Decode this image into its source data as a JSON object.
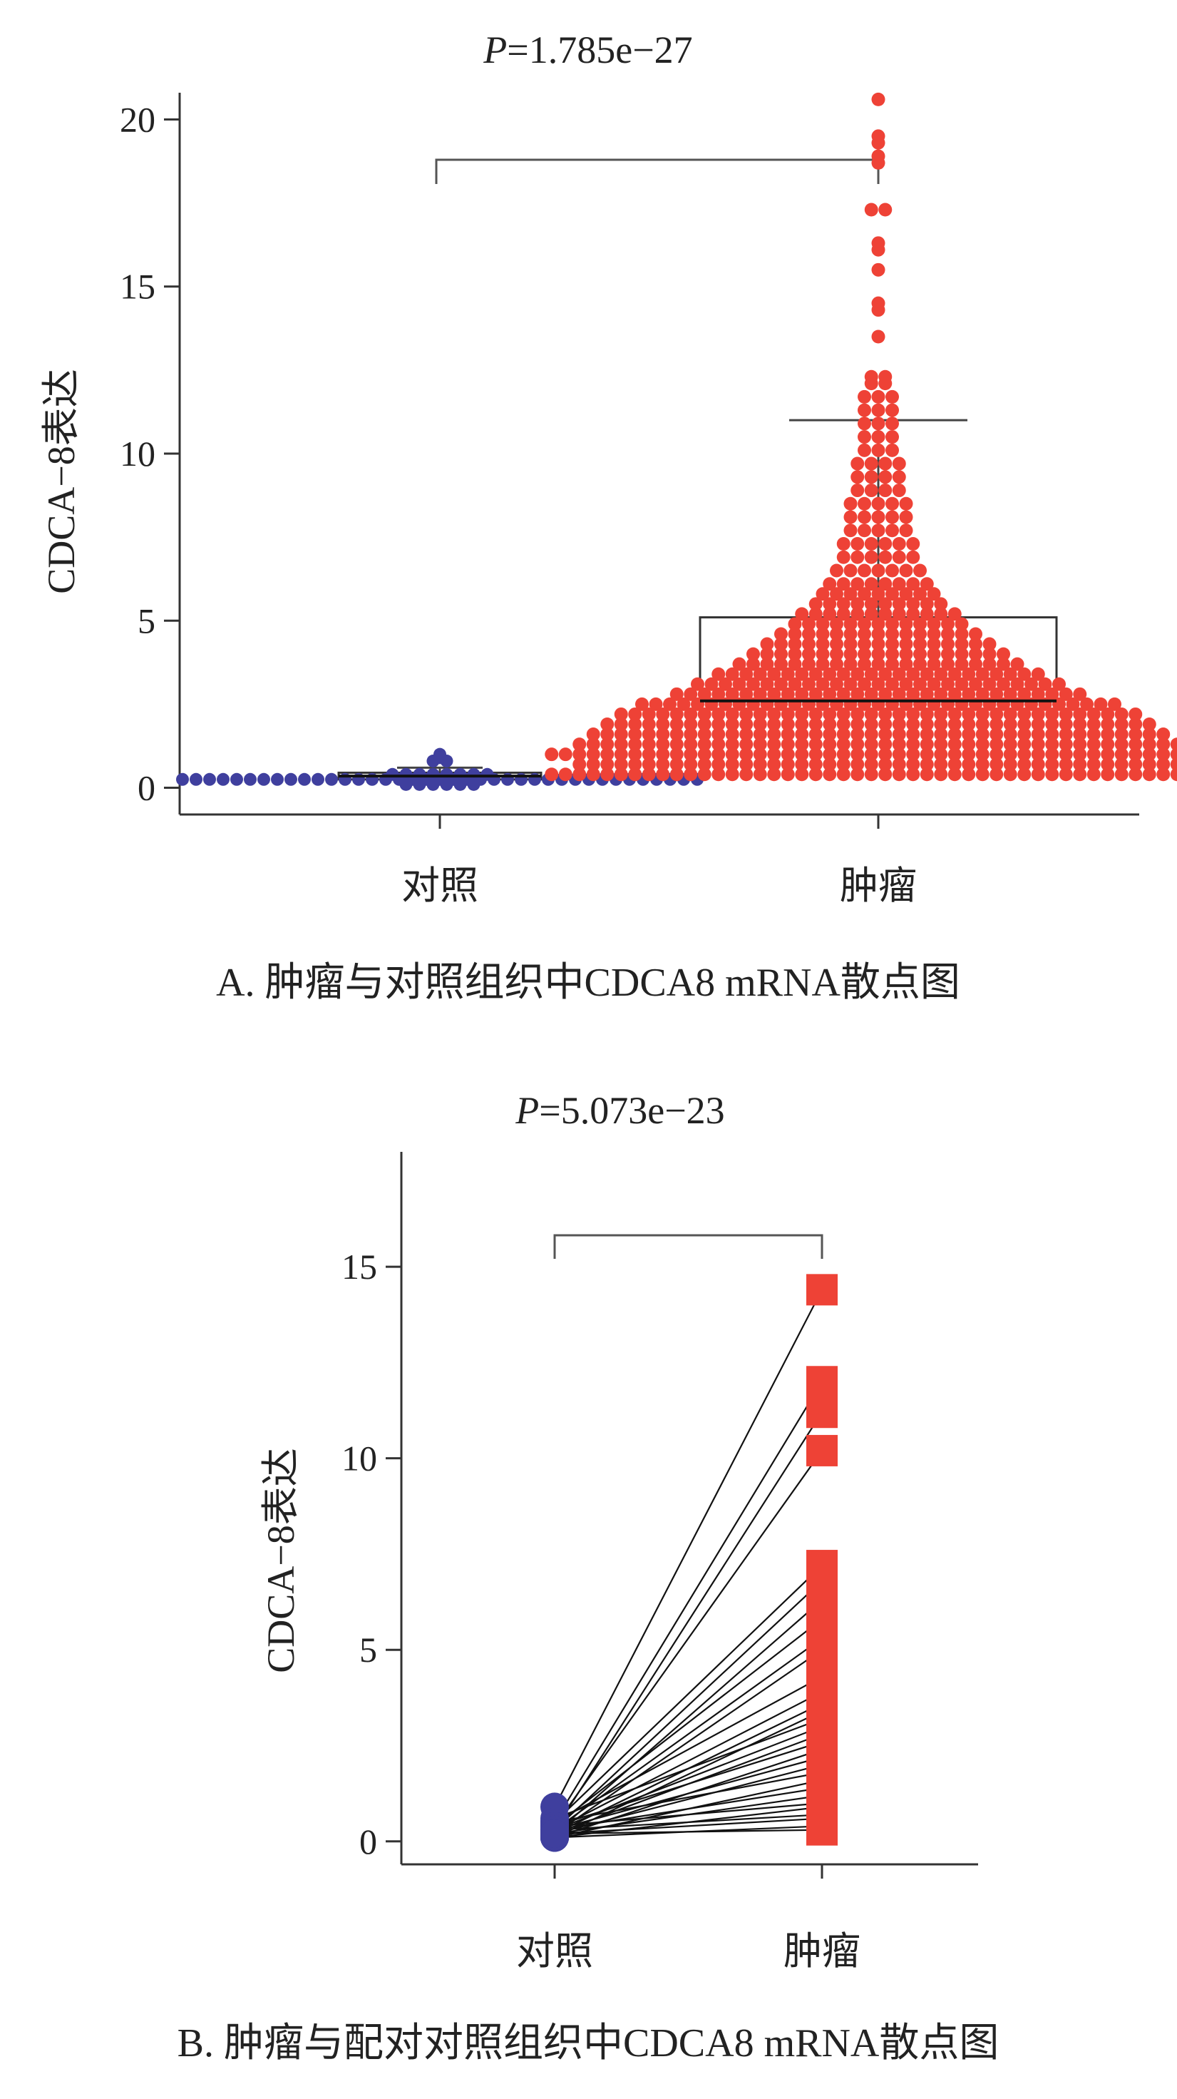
{
  "chart_data": [
    {
      "panel": "A",
      "type": "scatter",
      "title": {
        "italic": "P",
        "text": "=1.785e−27"
      },
      "ylabel": "CDCA−8表达",
      "xlabel": "",
      "categories": [
        "对照",
        "肿瘤"
      ],
      "ylim": [
        -0.8,
        20.8
      ],
      "yticks": [
        0,
        5,
        10,
        15,
        20
      ],
      "caption": "A. 肿瘤与对照组织中CDCA8 mRNA散点图",
      "colors": {
        "control": "#3f3f9e",
        "tumor": "#ee4236"
      },
      "box": {
        "control": {
          "q1": 0.25,
          "median": 0.35,
          "q3": 0.45,
          "whisker_high": 0.6
        },
        "tumor": {
          "q1": 2.6,
          "median": 2.6,
          "q3": 5.1,
          "whisker_high": 11.0
        }
      },
      "series": [
        {
          "name": "对照",
          "values": [
            0.25,
            0.25,
            0.25,
            0.25,
            0.25,
            0.25,
            0.25,
            0.25,
            0.25,
            0.25,
            0.25,
            0.25,
            0.25,
            0.25,
            0.25,
            0.25,
            0.25,
            0.25,
            0.25,
            0.25,
            0.25,
            0.25,
            0.25,
            0.25,
            0.25,
            0.25,
            0.25,
            0.25,
            0.25,
            0.25,
            0.25,
            0.25,
            0.25,
            0.25,
            0.25,
            0.25,
            0.25,
            0.25,
            0.25,
            0.4,
            0.4,
            0.4,
            0.4,
            0.4,
            0.4,
            0.4,
            0.4,
            0.1,
            0.1,
            0.1,
            0.1,
            0.1,
            0.1,
            0.8,
            0.8,
            0.9,
            1.0
          ]
        },
        {
          "name": "肿瘤",
          "values": [
            0.4,
            0.4,
            0.4,
            0.4,
            0.4,
            0.4,
            0.4,
            0.4,
            0.4,
            0.4,
            0.4,
            0.4,
            0.4,
            0.4,
            0.4,
            0.4,
            0.4,
            0.4,
            0.4,
            0.4,
            0.4,
            0.4,
            0.4,
            0.4,
            0.4,
            0.4,
            0.4,
            0.4,
            0.4,
            0.4,
            0.4,
            0.4,
            0.4,
            0.4,
            0.4,
            0.4,
            0.4,
            0.4,
            0.4,
            0.4,
            0.4,
            0.4,
            0.4,
            0.4,
            0.4,
            0.4,
            0.4,
            0.4,
            0.7,
            0.7,
            0.7,
            0.7,
            0.7,
            0.7,
            0.7,
            0.7,
            0.7,
            0.7,
            0.7,
            0.7,
            0.7,
            0.7,
            0.7,
            0.7,
            0.7,
            0.7,
            0.7,
            0.7,
            0.7,
            0.7,
            0.7,
            0.7,
            0.7,
            0.7,
            0.7,
            0.7,
            0.7,
            0.7,
            0.7,
            0.7,
            0.7,
            0.7,
            0.7,
            0.7,
            0.7,
            0.7,
            0.7,
            0.7,
            0.7,
            0.7,
            0.7,
            0.7,
            1.0,
            1.0,
            1.0,
            1.0,
            1.0,
            1.0,
            1.0,
            1.0,
            1.0,
            1.0,
            1.0,
            1.0,
            1.0,
            1.0,
            1.0,
            1.0,
            1.0,
            1.0,
            1.0,
            1.0,
            1.0,
            1.0,
            1.0,
            1.0,
            1.0,
            1.0,
            1.0,
            1.0,
            1.0,
            1.0,
            1.0,
            1.0,
            1.0,
            1.0,
            1.0,
            1.0,
            1.0,
            1.0,
            1.0,
            1.0,
            1.0,
            1.0,
            1.0,
            1.0,
            1.0,
            1.0,
            1.0,
            1.0,
            1.3,
            1.3,
            1.3,
            1.3,
            1.3,
            1.3,
            1.3,
            1.3,
            1.3,
            1.3,
            1.3,
            1.3,
            1.3,
            1.3,
            1.3,
            1.3,
            1.3,
            1.3,
            1.3,
            1.3,
            1.3,
            1.3,
            1.3,
            1.3,
            1.3,
            1.3,
            1.3,
            1.3,
            1.3,
            1.3,
            1.3,
            1.3,
            1.3,
            1.3,
            1.3,
            1.3,
            1.3,
            1.3,
            1.3,
            1.3,
            1.3,
            1.3,
            1.3,
            1.3,
            1.6,
            1.6,
            1.6,
            1.6,
            1.6,
            1.6,
            1.6,
            1.6,
            1.6,
            1.6,
            1.6,
            1.6,
            1.6,
            1.6,
            1.6,
            1.6,
            1.6,
            1.6,
            1.6,
            1.6,
            1.6,
            1.6,
            1.6,
            1.6,
            1.6,
            1.6,
            1.6,
            1.6,
            1.6,
            1.6,
            1.6,
            1.6,
            1.6,
            1.6,
            1.6,
            1.6,
            1.6,
            1.6,
            1.6,
            1.6,
            1.6,
            1.6,
            1.9,
            1.9,
            1.9,
            1.9,
            1.9,
            1.9,
            1.9,
            1.9,
            1.9,
            1.9,
            1.9,
            1.9,
            1.9,
            1.9,
            1.9,
            1.9,
            1.9,
            1.9,
            1.9,
            1.9,
            1.9,
            1.9,
            1.9,
            1.9,
            1.9,
            1.9,
            1.9,
            1.9,
            1.9,
            1.9,
            1.9,
            1.9,
            1.9,
            1.9,
            1.9,
            1.9,
            1.9,
            1.9,
            1.9,
            1.9,
            2.2,
            2.2,
            2.2,
            2.2,
            2.2,
            2.2,
            2.2,
            2.2,
            2.2,
            2.2,
            2.2,
            2.2,
            2.2,
            2.2,
            2.2,
            2.2,
            2.2,
            2.2,
            2.2,
            2.2,
            2.2,
            2.2,
            2.2,
            2.2,
            2.2,
            2.2,
            2.2,
            2.2,
            2.2,
            2.2,
            2.2,
            2.2,
            2.2,
            2.2,
            2.2,
            2.2,
            2.2,
            2.2,
            2.5,
            2.5,
            2.5,
            2.5,
            2.5,
            2.5,
            2.5,
            2.5,
            2.5,
            2.5,
            2.5,
            2.5,
            2.5,
            2.5,
            2.5,
            2.5,
            2.5,
            2.5,
            2.5,
            2.5,
            2.5,
            2.5,
            2.5,
            2.5,
            2.5,
            2.5,
            2.5,
            2.5,
            2.5,
            2.5,
            2.5,
            2.5,
            2.5,
            2.5,
            2.5,
            2.8,
            2.8,
            2.8,
            2.8,
            2.8,
            2.8,
            2.8,
            2.8,
            2.8,
            2.8,
            2.8,
            2.8,
            2.8,
            2.8,
            2.8,
            2.8,
            2.8,
            2.8,
            2.8,
            2.8,
            2.8,
            2.8,
            2.8,
            2.8,
            2.8,
            2.8,
            2.8,
            2.8,
            2.8,
            2.8,
            3.1,
            3.1,
            3.1,
            3.1,
            3.1,
            3.1,
            3.1,
            3.1,
            3.1,
            3.1,
            3.1,
            3.1,
            3.1,
            3.1,
            3.1,
            3.1,
            3.1,
            3.1,
            3.1,
            3.1,
            3.1,
            3.1,
            3.1,
            3.1,
            3.1,
            3.1,
            3.1,
            3.4,
            3.4,
            3.4,
            3.4,
            3.4,
            3.4,
            3.4,
            3.4,
            3.4,
            3.4,
            3.4,
            3.4,
            3.4,
            3.4,
            3.4,
            3.4,
            3.4,
            3.4,
            3.4,
            3.4,
            3.4,
            3.4,
            3.4,
            3.4,
            3.7,
            3.7,
            3.7,
            3.7,
            3.7,
            3.7,
            3.7,
            3.7,
            3.7,
            3.7,
            3.7,
            3.7,
            3.7,
            3.7,
            3.7,
            3.7,
            3.7,
            3.7,
            3.7,
            3.7,
            3.7,
            4.0,
            4.0,
            4.0,
            4.0,
            4.0,
            4.0,
            4.0,
            4.0,
            4.0,
            4.0,
            4.0,
            4.0,
            4.0,
            4.0,
            4.0,
            4.0,
            4.0,
            4.0,
            4.0,
            4.3,
            4.3,
            4.3,
            4.3,
            4.3,
            4.3,
            4.3,
            4.3,
            4.3,
            4.3,
            4.3,
            4.3,
            4.3,
            4.3,
            4.3,
            4.3,
            4.3,
            4.6,
            4.6,
            4.6,
            4.6,
            4.6,
            4.6,
            4.6,
            4.6,
            4.6,
            4.6,
            4.6,
            4.6,
            4.6,
            4.6,
            4.6,
            4.9,
            4.9,
            4.9,
            4.9,
            4.9,
            4.9,
            4.9,
            4.9,
            4.9,
            4.9,
            4.9,
            4.9,
            4.9,
            5.2,
            5.2,
            5.2,
            5.2,
            5.2,
            5.2,
            5.2,
            5.2,
            5.2,
            5.2,
            5.2,
            5.2,
            5.5,
            5.5,
            5.5,
            5.5,
            5.5,
            5.5,
            5.5,
            5.5,
            5.5,
            5.5,
            5.8,
            5.8,
            5.8,
            5.8,
            5.8,
            5.8,
            5.8,
            5.8,
            5.8,
            6.1,
            6.1,
            6.1,
            6.1,
            6.1,
            6.1,
            6.1,
            6.1,
            6.5,
            6.5,
            6.5,
            6.5,
            6.5,
            6.5,
            6.5,
            6.9,
            6.9,
            6.9,
            6.9,
            6.9,
            6.9,
            7.3,
            7.3,
            7.3,
            7.3,
            7.3,
            7.3,
            7.7,
            7.7,
            7.7,
            7.7,
            7.7,
            8.1,
            8.1,
            8.1,
            8.1,
            8.1,
            8.5,
            8.5,
            8.5,
            8.5,
            8.5,
            8.9,
            8.9,
            8.9,
            8.9,
            9.3,
            9.3,
            9.3,
            9.3,
            9.7,
            9.7,
            9.7,
            9.7,
            10.1,
            10.1,
            10.1,
            10.5,
            10.5,
            10.5,
            10.9,
            10.9,
            10.9,
            11.3,
            11.3,
            11.3,
            11.7,
            11.7,
            11.7,
            12.1,
            12.1,
            12.3,
            12.3,
            13.5,
            14.3,
            14.5,
            15.5,
            16.1,
            16.3,
            17.3,
            17.3,
            18.7,
            18.9,
            19.3,
            19.5,
            20.6
          ]
        }
      ]
    },
    {
      "panel": "B",
      "type": "scatter",
      "title": {
        "italic": "P",
        "text": "=5.073e−23"
      },
      "ylabel": "CDCA−8表达",
      "xlabel": "",
      "categories": [
        "对照",
        "肿瘤"
      ],
      "ylim": [
        -0.6,
        18.0
      ],
      "yticks": [
        0,
        5,
        10,
        15
      ],
      "caption": "B. 肿瘤与配对对照组织中CDCA8 mRNA散点图",
      "colors": {
        "control": "#3f3f9e",
        "tumor": "#ee4236"
      },
      "pairs": [
        {
          "control": 0.9,
          "tumor": 14.4
        },
        {
          "control": 0.5,
          "tumor": 12.0
        },
        {
          "control": 0.3,
          "tumor": 11.2
        },
        {
          "control": 0.4,
          "tumor": 10.2
        },
        {
          "control": 0.5,
          "tumor": 7.2
        },
        {
          "control": 0.3,
          "tumor": 6.8
        },
        {
          "control": 0.2,
          "tumor": 6.3
        },
        {
          "control": 0.4,
          "tumor": 5.8
        },
        {
          "control": 0.3,
          "tumor": 5.3
        },
        {
          "control": 0.2,
          "tumor": 5.0
        },
        {
          "control": 0.5,
          "tumor": 4.3
        },
        {
          "control": 0.3,
          "tumor": 3.9
        },
        {
          "control": 0.2,
          "tumor": 3.6
        },
        {
          "control": 0.1,
          "tumor": 3.4
        },
        {
          "control": 0.6,
          "tumor": 3.2
        },
        {
          "control": 0.3,
          "tumor": 3.0
        },
        {
          "control": 0.2,
          "tumor": 2.8
        },
        {
          "control": 0.4,
          "tumor": 2.6
        },
        {
          "control": 0.1,
          "tumor": 2.4
        },
        {
          "control": 0.3,
          "tumor": 2.2
        },
        {
          "control": 0.2,
          "tumor": 2.0
        },
        {
          "control": 0.5,
          "tumor": 1.8
        },
        {
          "control": 0.1,
          "tumor": 1.6
        },
        {
          "control": 0.3,
          "tumor": 1.4
        },
        {
          "control": 0.2,
          "tumor": 1.2
        },
        {
          "control": 0.4,
          "tumor": 1.0
        },
        {
          "control": 0.1,
          "tumor": 0.9
        },
        {
          "control": 0.3,
          "tumor": 0.7
        },
        {
          "control": 0.2,
          "tumor": 0.6
        },
        {
          "control": 0.1,
          "tumor": 0.4
        },
        {
          "control": 0.2,
          "tumor": 0.3
        }
      ]
    }
  ]
}
